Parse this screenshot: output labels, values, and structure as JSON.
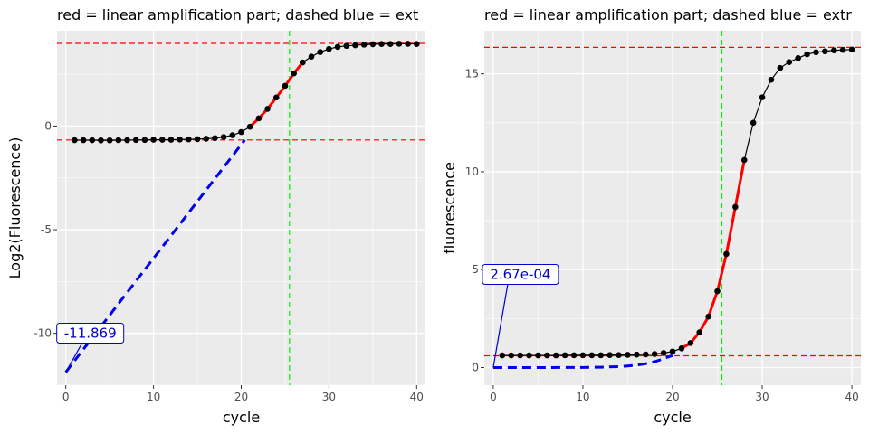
{
  "colors": {
    "panel_bg": "#ebebeb",
    "grid_major": "#ffffff",
    "points": "#000000",
    "linear_part": "#ff0000",
    "extrapolation": "#0000ee",
    "hline": "#ff0000",
    "vline": "#00ee00",
    "annotation": "#0000cc"
  },
  "chart_data": [
    {
      "type": "line",
      "title": "red = linear amplification part; dashed blue = ext",
      "xlabel": "cycle",
      "ylabel": "Log2(Fluorescence)",
      "xlim": [
        -1,
        41
      ],
      "ylim": [
        -12.5,
        4.6
      ],
      "xticks": [
        0,
        10,
        20,
        30,
        40
      ],
      "xtick_labels": [
        "0",
        "10",
        "20",
        "30",
        "40"
      ],
      "yticks": [
        -10,
        -5,
        0
      ],
      "ytick_labels": [
        "-10",
        "-5",
        "0"
      ],
      "grid": true,
      "series": [
        {
          "role": "observed",
          "style": "points-with-line",
          "x": [
            1,
            2,
            3,
            4,
            5,
            6,
            7,
            8,
            9,
            10,
            11,
            12,
            13,
            14,
            15,
            16,
            17,
            18,
            19,
            20,
            21,
            22,
            23,
            24,
            25,
            26,
            27,
            28,
            29,
            30,
            31,
            32,
            33,
            34,
            35,
            36,
            37,
            38,
            39,
            40
          ],
          "y": [
            -0.68,
            -0.68,
            -0.68,
            -0.69,
            -0.69,
            -0.68,
            -0.68,
            -0.67,
            -0.67,
            -0.66,
            -0.66,
            -0.66,
            -0.65,
            -0.64,
            -0.63,
            -0.61,
            -0.58,
            -0.53,
            -0.44,
            -0.29,
            -0.03,
            0.37,
            0.83,
            1.38,
            1.94,
            2.54,
            3.07,
            3.35,
            3.57,
            3.72,
            3.82,
            3.87,
            3.9,
            3.93,
            3.95,
            3.96,
            3.96,
            3.97,
            3.97,
            3.96
          ]
        },
        {
          "role": "linear-amplification",
          "style": "thick-line",
          "x": [
            21,
            22,
            23,
            24,
            25,
            26,
            27
          ],
          "y": [
            -0.03,
            0.37,
            0.83,
            1.38,
            1.94,
            2.54,
            3.07
          ]
        },
        {
          "role": "extrapolation",
          "style": "dashed-line",
          "x": [
            0,
            20.4
          ],
          "y": [
            -11.869,
            -0.67
          ]
        }
      ],
      "hlines": [
        3.99,
        -0.67
      ],
      "vlines": [
        25.5
      ],
      "annotation": {
        "text": "-11.869",
        "x": 0,
        "y": -11.869
      }
    },
    {
      "type": "line",
      "title": "red = linear amplification part; dashed blue = extr",
      "xlabel": "cycle",
      "ylabel": "fluorescence",
      "xlim": [
        -1,
        41
      ],
      "ylim": [
        -0.9,
        17.2
      ],
      "xticks": [
        0,
        10,
        20,
        30,
        40
      ],
      "xtick_labels": [
        "0",
        "10",
        "20",
        "30",
        "40"
      ],
      "yticks": [
        0,
        5,
        10,
        15
      ],
      "ytick_labels": [
        "0",
        "5",
        "10",
        "15"
      ],
      "grid": true,
      "series": [
        {
          "role": "observed",
          "style": "points-with-line",
          "x": [
            1,
            2,
            3,
            4,
            5,
            6,
            7,
            8,
            9,
            10,
            11,
            12,
            13,
            14,
            15,
            16,
            17,
            18,
            19,
            20,
            21,
            22,
            23,
            24,
            25,
            26,
            27,
            28,
            29,
            30,
            31,
            32,
            33,
            34,
            35,
            36,
            37,
            38,
            39,
            40
          ],
          "y": [
            0.62,
            0.62,
            0.62,
            0.62,
            0.62,
            0.62,
            0.62,
            0.63,
            0.63,
            0.63,
            0.63,
            0.63,
            0.64,
            0.64,
            0.65,
            0.66,
            0.67,
            0.69,
            0.74,
            0.82,
            0.98,
            1.25,
            1.8,
            2.6,
            3.9,
            5.8,
            8.2,
            10.6,
            12.5,
            13.8,
            14.7,
            15.3,
            15.6,
            15.8,
            16.0,
            16.1,
            16.15,
            16.2,
            16.22,
            16.24
          ]
        },
        {
          "role": "linear-amplification",
          "style": "thick-line",
          "x": [
            21,
            22,
            23,
            24,
            25,
            26,
            27,
            28
          ],
          "y": [
            0.98,
            1.25,
            1.8,
            2.6,
            3.9,
            5.8,
            8.2,
            10.6
          ]
        },
        {
          "role": "extrapolation",
          "style": "dashed-curve",
          "x": [
            0,
            2,
            4,
            6,
            8,
            10,
            12,
            14,
            15,
            16,
            17,
            18,
            19,
            20
          ],
          "y": [
            0.000267,
            0.0005,
            0.001,
            0.002,
            0.004,
            0.008,
            0.02,
            0.05,
            0.08,
            0.12,
            0.2,
            0.3,
            0.45,
            0.62
          ]
        }
      ],
      "hlines": [
        16.35,
        0.6
      ],
      "vlines": [
        25.5
      ],
      "annotation": {
        "text": "2.67e-04",
        "x": 0,
        "y": 0.000267
      }
    }
  ]
}
